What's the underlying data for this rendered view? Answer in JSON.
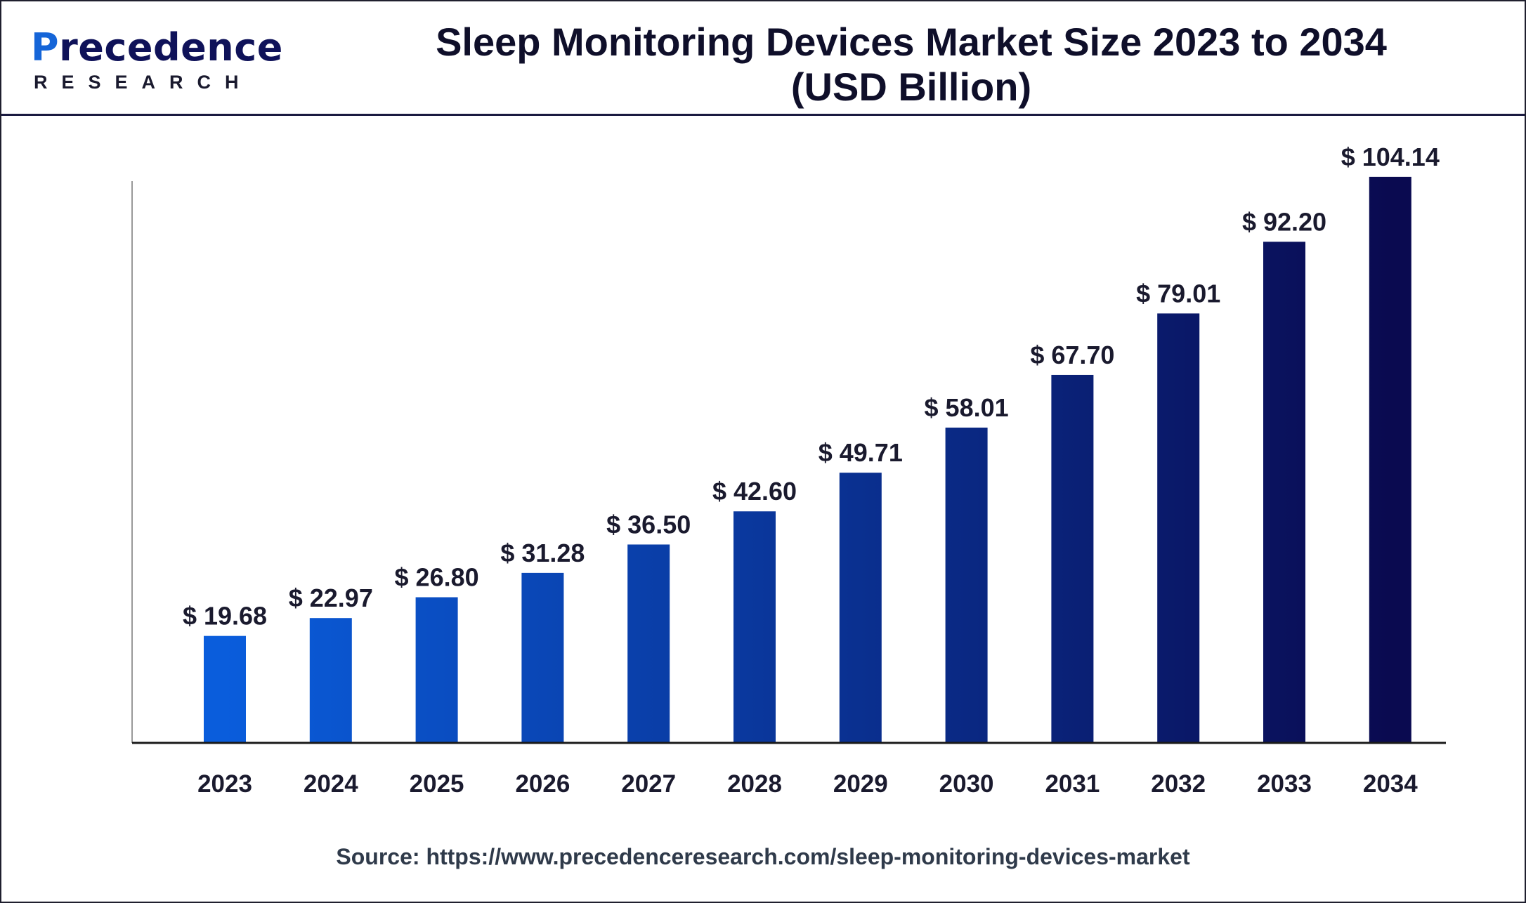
{
  "logo": {
    "name_prefix": "P",
    "name_rest": "recedence",
    "sub": "RESEARCH"
  },
  "title": {
    "line1": "Sleep Monitoring Devices Market Size 2023 to 2034",
    "line2": "(USD Billion)"
  },
  "source": "Source: https://www.precedenceresearch.com/sleep-monitoring-devices-market",
  "colors": {
    "logo_navy": "#0f1259",
    "logo_blue": "#1565d8",
    "bar_gradient": [
      "#0a5ddc",
      "#0a0a50"
    ],
    "axis": "#1a1a1a",
    "label": "#1a1a2e"
  },
  "chart_data": {
    "type": "bar",
    "categories": [
      "2023",
      "2024",
      "2025",
      "2026",
      "2027",
      "2028",
      "2029",
      "2030",
      "2031",
      "2032",
      "2033",
      "2034"
    ],
    "values": [
      19.68,
      22.97,
      26.8,
      31.28,
      36.5,
      42.6,
      49.71,
      58.01,
      67.7,
      79.01,
      92.2,
      104.14
    ],
    "value_labels": [
      "$ 19.68",
      "$ 22.97",
      "$ 26.80",
      "$ 31.28",
      "$ 36.50",
      "$ 42.60",
      "$ 49.71",
      "$ 58.01",
      "$ 67.70",
      "$ 79.01",
      "$ 92.20",
      "$ 104.14"
    ],
    "title": "Sleep Monitoring Devices Market Size 2023 to 2034 (USD Billion)",
    "xlabel": "",
    "ylabel": "",
    "ylim": [
      0,
      108
    ],
    "grid": false,
    "legend": "none"
  }
}
